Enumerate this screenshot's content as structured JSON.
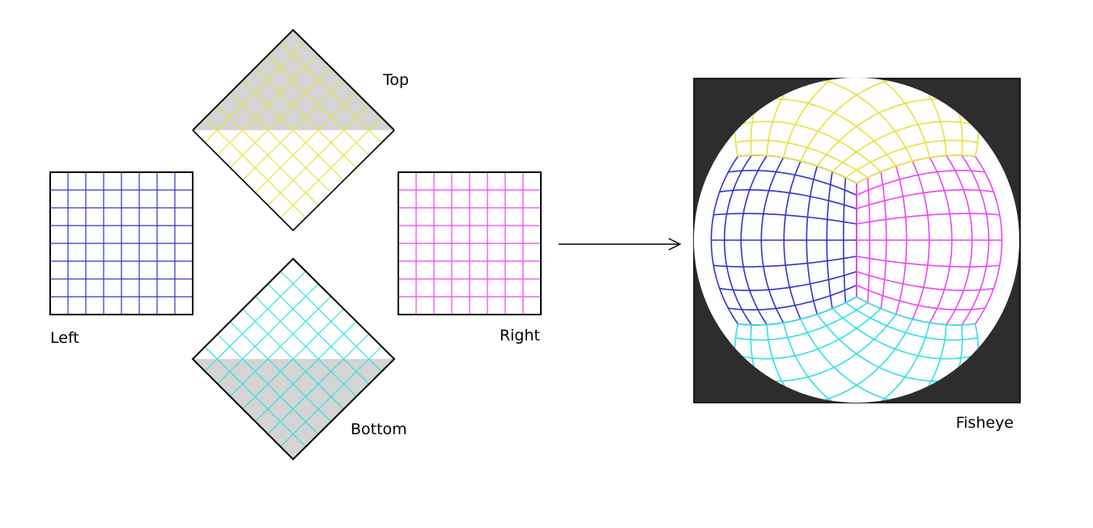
{
  "labels": {
    "top": "Top",
    "left": "Left",
    "right": "Right",
    "bottom": "Bottom",
    "fisheye": "Fisheye"
  },
  "colors": {
    "left": "#3333cc",
    "right": "#ee44ee",
    "top": "#e6e23c",
    "bottom": "#33e0e0",
    "shade": "#d4d4d4",
    "fisheye_background": "#2d2d2d",
    "outline": "#000000"
  },
  "grid_divisions": 8,
  "diagram": {
    "faces": [
      "left",
      "top",
      "right",
      "bottom"
    ],
    "arrow": {
      "from": "faces",
      "to": "fisheye"
    }
  }
}
